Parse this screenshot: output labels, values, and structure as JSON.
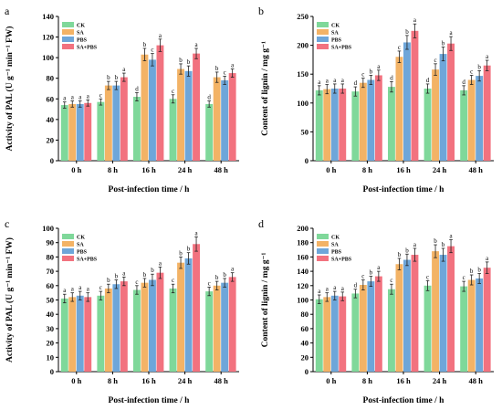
{
  "colors": {
    "CK": "#7fd89a",
    "SA": "#f3b366",
    "PBS": "#6ea6d9",
    "SA+PBS": "#f2727f"
  },
  "chart_data": [
    {
      "panel": "a",
      "type": "bar",
      "xlabel": "Post-infection time / h",
      "ylabel": "Activity of PAL (U g⁻¹ min⁻¹ FW)",
      "ylim": [
        0,
        140
      ],
      "yticks": [
        0,
        20,
        40,
        60,
        80,
        100,
        120,
        140
      ],
      "categories": [
        "0 h",
        "8 h",
        "16 h",
        "24 h",
        "48 h"
      ],
      "legend": "top-left",
      "series": [
        {
          "name": "CK",
          "values": [
            54,
            57,
            62,
            60,
            55
          ],
          "errors": [
            3,
            3,
            4,
            4,
            3
          ],
          "letters": [
            "a",
            "c",
            "d",
            "c",
            "d"
          ]
        },
        {
          "name": "SA",
          "values": [
            55,
            73,
            103,
            89,
            81
          ],
          "errors": [
            3,
            4,
            6,
            5,
            5
          ],
          "letters": [
            "a",
            "b",
            "b",
            "b",
            "b"
          ]
        },
        {
          "name": "PBS",
          "values": [
            55,
            73,
            98,
            87,
            78
          ],
          "errors": [
            3,
            4,
            6,
            5,
            4
          ],
          "letters": [
            "a",
            "b",
            "c",
            "b",
            "c"
          ]
        },
        {
          "name": "SA+PBS",
          "values": [
            56,
            81,
            112,
            104,
            85
          ],
          "errors": [
            3,
            4,
            6,
            5,
            4
          ],
          "letters": [
            "a",
            "a",
            "a",
            "a",
            "a"
          ]
        }
      ]
    },
    {
      "panel": "b",
      "type": "bar",
      "xlabel": "Post-infection time / h",
      "ylabel": "Content of lignin / mg g⁻¹",
      "ylim": [
        0,
        250
      ],
      "yticks": [
        0,
        50,
        100,
        150,
        200,
        250
      ],
      "categories": [
        "0 h",
        "8 h",
        "16 h",
        "24 h",
        "48 h"
      ],
      "legend": "top-left",
      "series": [
        {
          "name": "CK",
          "values": [
            122,
            120,
            128,
            125,
            122
          ],
          "errors": [
            8,
            8,
            9,
            8,
            8
          ],
          "letters": [
            "a",
            "d",
            "d",
            "d",
            "d"
          ]
        },
        {
          "name": "SA",
          "values": [
            124,
            135,
            180,
            158,
            140
          ],
          "errors": [
            8,
            8,
            10,
            10,
            8
          ],
          "letters": [
            "a",
            "c",
            "c",
            "c",
            "c"
          ]
        },
        {
          "name": "PBS",
          "values": [
            125,
            140,
            205,
            185,
            147
          ],
          "errors": [
            8,
            8,
            12,
            12,
            9
          ],
          "letters": [
            "a",
            "b",
            "b",
            "b",
            "b"
          ]
        },
        {
          "name": "SA+PBS",
          "values": [
            125,
            148,
            225,
            203,
            165
          ],
          "errors": [
            8,
            9,
            12,
            12,
            9
          ],
          "letters": [
            "a",
            "a",
            "a",
            "a",
            "a"
          ]
        }
      ]
    },
    {
      "panel": "c",
      "type": "bar",
      "xlabel": "Post-infection time / h",
      "ylabel": "Activity of PAL (U g⁻¹ min⁻¹ FW)",
      "ylim": [
        0,
        100
      ],
      "yticks": [
        0,
        10,
        20,
        30,
        40,
        50,
        60,
        70,
        80,
        90,
        100
      ],
      "categories": [
        "0 h",
        "8 h",
        "16 h",
        "24 h",
        "48 h"
      ],
      "legend": "top-left",
      "series": [
        {
          "name": "CK",
          "values": [
            51,
            53,
            57,
            58,
            56
          ],
          "errors": [
            3,
            3,
            3,
            3,
            3
          ],
          "letters": [
            "a",
            "c",
            "c",
            "c",
            "c"
          ]
        },
        {
          "name": "SA",
          "values": [
            52,
            58,
            62,
            76,
            60
          ],
          "errors": [
            3,
            3,
            3,
            4,
            3
          ],
          "letters": [
            "a",
            "b",
            "b",
            "b",
            "b"
          ]
        },
        {
          "name": "PBS",
          "values": [
            53,
            61,
            64,
            79,
            62
          ],
          "errors": [
            3,
            3,
            4,
            4,
            3
          ],
          "letters": [
            "a",
            "b",
            "b",
            "b",
            "b"
          ]
        },
        {
          "name": "SA+PBS",
          "values": [
            52,
            63,
            69,
            89,
            66
          ],
          "errors": [
            3,
            3,
            4,
            5,
            3
          ],
          "letters": [
            "a",
            "a",
            "a",
            "a",
            "a"
          ]
        }
      ]
    },
    {
      "panel": "d",
      "type": "bar",
      "xlabel": "Post-infection time / h",
      "ylabel": "Content of lignin / mg g⁻¹",
      "ylim": [
        0,
        200
      ],
      "yticks": [
        0,
        20,
        40,
        60,
        80,
        100,
        120,
        140,
        160,
        180,
        200
      ],
      "categories": [
        "0 h",
        "8 h",
        "16 h",
        "24 h",
        "48 h"
      ],
      "legend": "top-left",
      "series": [
        {
          "name": "CK",
          "values": [
            101,
            109,
            115,
            120,
            119
          ],
          "errors": [
            6,
            6,
            7,
            7,
            7
          ],
          "letters": [
            "a",
            "d",
            "c",
            "c",
            "c"
          ]
        },
        {
          "name": "SA",
          "values": [
            104,
            121,
            150,
            168,
            128
          ],
          "errors": [
            6,
            7,
            8,
            9,
            7
          ],
          "letters": [
            "a",
            "c",
            "b",
            "b",
            "b"
          ]
        },
        {
          "name": "PBS",
          "values": [
            106,
            126,
            156,
            163,
            130
          ],
          "errors": [
            6,
            7,
            8,
            9,
            7
          ],
          "letters": [
            "a",
            "b",
            "b",
            "b",
            "b"
          ]
        },
        {
          "name": "SA+PBS",
          "values": [
            105,
            133,
            163,
            175,
            145
          ],
          "errors": [
            6,
            7,
            9,
            9,
            8
          ],
          "letters": [
            "a",
            "a",
            "a",
            "a",
            "a"
          ]
        }
      ]
    }
  ]
}
